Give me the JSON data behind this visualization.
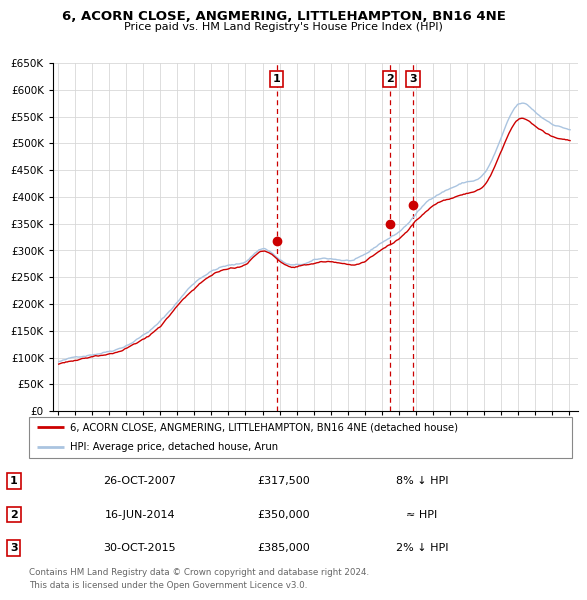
{
  "title": "6, ACORN CLOSE, ANGMERING, LITTLEHAMPTON, BN16 4NE",
  "subtitle": "Price paid vs. HM Land Registry's House Price Index (HPI)",
  "legend_line1": "6, ACORN CLOSE, ANGMERING, LITTLEHAMPTON, BN16 4NE (detached house)",
  "legend_line2": "HPI: Average price, detached house, Arun",
  "table_rows": [
    {
      "num": "1",
      "date": "26-OCT-2007",
      "price": "£317,500",
      "rel": "8% ↓ HPI"
    },
    {
      "num": "2",
      "date": "16-JUN-2014",
      "price": "£350,000",
      "rel": "≈ HPI"
    },
    {
      "num": "3",
      "date": "30-OCT-2015",
      "price": "£385,000",
      "rel": "2% ↓ HPI"
    }
  ],
  "footer1": "Contains HM Land Registry data © Crown copyright and database right 2024.",
  "footer2": "This data is licensed under the Open Government Licence v3.0.",
  "hpi_color": "#aac4e0",
  "price_color": "#cc0000",
  "vline_color": "#cc0000",
  "marker_color": "#cc0000",
  "ylim_min": 0,
  "ylim_max": 650000,
  "ytick_values": [
    0,
    50000,
    100000,
    150000,
    200000,
    250000,
    300000,
    350000,
    400000,
    450000,
    500000,
    550000,
    600000,
    650000
  ],
  "background_color": "#ffffff",
  "plot_bg_color": "#ffffff",
  "grid_color": "#d8d8d8",
  "sale_years": [
    2007.83,
    2014.46,
    2015.83
  ],
  "sale_prices": [
    317500,
    350000,
    385000
  ],
  "sale_labels": [
    "1",
    "2",
    "3"
  ],
  "vline_positions": [
    2007.83,
    2014.46,
    2015.83
  ],
  "xlim_min": 1994.7,
  "xlim_max": 2025.5
}
